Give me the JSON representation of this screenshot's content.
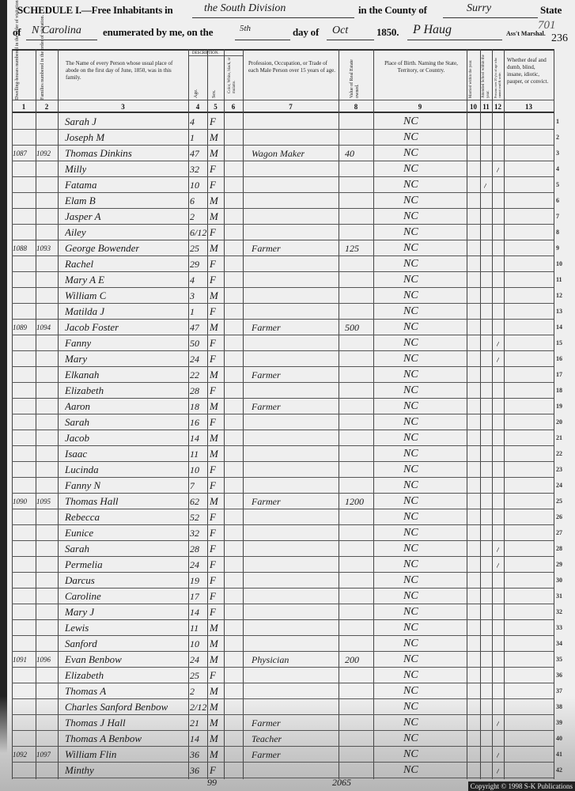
{
  "heading": {
    "schedule": "SCHEDULE I.—Free Inhabitants in",
    "division": "the South Division",
    "county_label": "in the County of",
    "county": "Surry",
    "state_label": "State",
    "of_label": "of",
    "state": "N Carolina",
    "enumerated_label": "enumerated by me, on the",
    "day": "5th",
    "day_of_label": "day of",
    "month": "Oct",
    "year": "1850.",
    "marshal": "P Haug",
    "marshal_label": "Ass't Marshal.",
    "page_stamp": "701",
    "page_number": "236"
  },
  "columns": {
    "c1": "Dwelling-houses numbered in the order of visitation.",
    "c2": "Families numbered in the order of visitation.",
    "c3": "The Name of every Person whose usual place of abode on the first day of June, 1850, was in this family.",
    "description": "DESCRIPTION.",
    "c4": "Age.",
    "c5": "Sex.",
    "c6": "Color, White, black, or mulatto.",
    "c7": "Profession, Occupation, or Trade of each Male Person over 15 years of age.",
    "c8": "Value of Real Estate owned.",
    "c9": "Place of Birth. Naming the State, Territory, or Country.",
    "c10": "Married within the year.",
    "c11": "Attended School within the year.",
    "c12": "Persons over 20 y'rs of age who cannot read & write.",
    "c13": "Whether deaf and dumb, blind, insane, idiotic, pauper, or convict.",
    "numbers": [
      "1",
      "2",
      "3",
      "4",
      "5",
      "6",
      "7",
      "8",
      "9",
      "10",
      "11",
      "12",
      "13"
    ]
  },
  "rows": [
    {
      "line": "1",
      "dw": "",
      "fam": "",
      "name": "Sarah J",
      "age": "4",
      "sex": "F",
      "occ": "",
      "val": "",
      "birth": "NC",
      "school": "",
      "illit": ""
    },
    {
      "line": "2",
      "dw": "",
      "fam": "",
      "name": "Joseph M",
      "age": "1",
      "sex": "M",
      "occ": "",
      "val": "",
      "birth": "NC",
      "school": "",
      "illit": ""
    },
    {
      "line": "3",
      "dw": "1087",
      "fam": "1092",
      "name": "Thomas Dinkins",
      "age": "47",
      "sex": "M",
      "occ": "Wagon Maker",
      "val": "40",
      "birth": "NC",
      "school": "",
      "illit": ""
    },
    {
      "line": "4",
      "dw": "",
      "fam": "",
      "name": "Milly",
      "age": "32",
      "sex": "F",
      "occ": "",
      "val": "",
      "birth": "NC",
      "school": "",
      "illit": "/"
    },
    {
      "line": "5",
      "dw": "",
      "fam": "",
      "name": "Fatama",
      "age": "10",
      "sex": "F",
      "occ": "",
      "val": "",
      "birth": "NC",
      "school": "/",
      "illit": ""
    },
    {
      "line": "6",
      "dw": "",
      "fam": "",
      "name": "Elam B",
      "age": "6",
      "sex": "M",
      "occ": "",
      "val": "",
      "birth": "NC",
      "school": "",
      "illit": ""
    },
    {
      "line": "7",
      "dw": "",
      "fam": "",
      "name": "Jasper A",
      "age": "2",
      "sex": "M",
      "occ": "",
      "val": "",
      "birth": "NC",
      "school": "",
      "illit": ""
    },
    {
      "line": "8",
      "dw": "",
      "fam": "",
      "name": "Ailey",
      "age": "6/12",
      "sex": "F",
      "occ": "",
      "val": "",
      "birth": "NC",
      "school": "",
      "illit": ""
    },
    {
      "line": "9",
      "dw": "1088",
      "fam": "1093",
      "name": "George Bowender",
      "age": "25",
      "sex": "M",
      "occ": "Farmer",
      "val": "125",
      "birth": "NC",
      "school": "",
      "illit": ""
    },
    {
      "line": "10",
      "dw": "",
      "fam": "",
      "name": "Rachel",
      "age": "29",
      "sex": "F",
      "occ": "",
      "val": "",
      "birth": "NC",
      "school": "",
      "illit": ""
    },
    {
      "line": "11",
      "dw": "",
      "fam": "",
      "name": "Mary A E",
      "age": "4",
      "sex": "F",
      "occ": "",
      "val": "",
      "birth": "NC",
      "school": "",
      "illit": ""
    },
    {
      "line": "12",
      "dw": "",
      "fam": "",
      "name": "William C",
      "age": "3",
      "sex": "M",
      "occ": "",
      "val": "",
      "birth": "NC",
      "school": "",
      "illit": ""
    },
    {
      "line": "13",
      "dw": "",
      "fam": "",
      "name": "Matilda J",
      "age": "1",
      "sex": "F",
      "occ": "",
      "val": "",
      "birth": "NC",
      "school": "",
      "illit": ""
    },
    {
      "line": "14",
      "dw": "1089",
      "fam": "1094",
      "name": "Jacob Foster",
      "age": "47",
      "sex": "M",
      "occ": "Farmer",
      "val": "500",
      "birth": "NC",
      "school": "",
      "illit": ""
    },
    {
      "line": "15",
      "dw": "",
      "fam": "",
      "name": "Fanny",
      "age": "50",
      "sex": "F",
      "occ": "",
      "val": "",
      "birth": "NC",
      "school": "",
      "illit": "/"
    },
    {
      "line": "16",
      "dw": "",
      "fam": "",
      "name": "Mary",
      "age": "24",
      "sex": "F",
      "occ": "",
      "val": "",
      "birth": "NC",
      "school": "",
      "illit": "/"
    },
    {
      "line": "17",
      "dw": "",
      "fam": "",
      "name": "Elkanah",
      "age": "22",
      "sex": "M",
      "occ": "Farmer",
      "val": "",
      "birth": "NC",
      "school": "",
      "illit": ""
    },
    {
      "line": "18",
      "dw": "",
      "fam": "",
      "name": "Elizabeth",
      "age": "28",
      "sex": "F",
      "occ": "",
      "val": "",
      "birth": "NC",
      "school": "",
      "illit": ""
    },
    {
      "line": "19",
      "dw": "",
      "fam": "",
      "name": "Aaron",
      "age": "18",
      "sex": "M",
      "occ": "Farmer",
      "val": "",
      "birth": "NC",
      "school": "",
      "illit": ""
    },
    {
      "line": "20",
      "dw": "",
      "fam": "",
      "name": "Sarah",
      "age": "16",
      "sex": "F",
      "occ": "",
      "val": "",
      "birth": "NC",
      "school": "",
      "illit": ""
    },
    {
      "line": "21",
      "dw": "",
      "fam": "",
      "name": "Jacob",
      "age": "14",
      "sex": "M",
      "occ": "",
      "val": "",
      "birth": "NC",
      "school": "",
      "illit": ""
    },
    {
      "line": "22",
      "dw": "",
      "fam": "",
      "name": "Isaac",
      "age": "11",
      "sex": "M",
      "occ": "",
      "val": "",
      "birth": "NC",
      "school": "",
      "illit": ""
    },
    {
      "line": "23",
      "dw": "",
      "fam": "",
      "name": "Lucinda",
      "age": "10",
      "sex": "F",
      "occ": "",
      "val": "",
      "birth": "NC",
      "school": "",
      "illit": ""
    },
    {
      "line": "24",
      "dw": "",
      "fam": "",
      "name": "Fanny N",
      "age": "7",
      "sex": "F",
      "occ": "",
      "val": "",
      "birth": "NC",
      "school": "",
      "illit": ""
    },
    {
      "line": "25",
      "dw": "1090",
      "fam": "1095",
      "name": "Thomas Hall",
      "age": "62",
      "sex": "M",
      "occ": "Farmer",
      "val": "1200",
      "birth": "NC",
      "school": "",
      "illit": ""
    },
    {
      "line": "26",
      "dw": "",
      "fam": "",
      "name": "Rebecca",
      "age": "52",
      "sex": "F",
      "occ": "",
      "val": "",
      "birth": "NC",
      "school": "",
      "illit": ""
    },
    {
      "line": "27",
      "dw": "",
      "fam": "",
      "name": "Eunice",
      "age": "32",
      "sex": "F",
      "occ": "",
      "val": "",
      "birth": "NC",
      "school": "",
      "illit": ""
    },
    {
      "line": "28",
      "dw": "",
      "fam": "",
      "name": "Sarah",
      "age": "28",
      "sex": "F",
      "occ": "",
      "val": "",
      "birth": "NC",
      "school": "",
      "illit": "/"
    },
    {
      "line": "29",
      "dw": "",
      "fam": "",
      "name": "Permelia",
      "age": "24",
      "sex": "F",
      "occ": "",
      "val": "",
      "birth": "NC",
      "school": "",
      "illit": "/"
    },
    {
      "line": "30",
      "dw": "",
      "fam": "",
      "name": "Darcus",
      "age": "19",
      "sex": "F",
      "occ": "",
      "val": "",
      "birth": "NC",
      "school": "",
      "illit": ""
    },
    {
      "line": "31",
      "dw": "",
      "fam": "",
      "name": "Caroline",
      "age": "17",
      "sex": "F",
      "occ": "",
      "val": "",
      "birth": "NC",
      "school": "",
      "illit": ""
    },
    {
      "line": "32",
      "dw": "",
      "fam": "",
      "name": "Mary J",
      "age": "14",
      "sex": "F",
      "occ": "",
      "val": "",
      "birth": "NC",
      "school": "",
      "illit": ""
    },
    {
      "line": "33",
      "dw": "",
      "fam": "",
      "name": "Lewis",
      "age": "11",
      "sex": "M",
      "occ": "",
      "val": "",
      "birth": "NC",
      "school": "",
      "illit": ""
    },
    {
      "line": "34",
      "dw": "",
      "fam": "",
      "name": "Sanford",
      "age": "10",
      "sex": "M",
      "occ": "",
      "val": "",
      "birth": "NC",
      "school": "",
      "illit": ""
    },
    {
      "line": "35",
      "dw": "1091",
      "fam": "1096",
      "name": "Evan Benbow",
      "age": "24",
      "sex": "M",
      "occ": "Physician",
      "val": "200",
      "birth": "NC",
      "school": "",
      "illit": ""
    },
    {
      "line": "36",
      "dw": "",
      "fam": "",
      "name": "Elizabeth",
      "age": "25",
      "sex": "F",
      "occ": "",
      "val": "",
      "birth": "NC",
      "school": "",
      "illit": ""
    },
    {
      "line": "37",
      "dw": "",
      "fam": "",
      "name": "Thomas A",
      "age": "2",
      "sex": "M",
      "occ": "",
      "val": "",
      "birth": "NC",
      "school": "",
      "illit": ""
    },
    {
      "line": "38",
      "dw": "",
      "fam": "",
      "name": "Charles Sanford Benbow",
      "age": "2/12",
      "sex": "M",
      "occ": "",
      "val": "",
      "birth": "NC",
      "school": "",
      "illit": ""
    },
    {
      "line": "39",
      "dw": "",
      "fam": "",
      "name": "Thomas J Hall",
      "age": "21",
      "sex": "M",
      "occ": "Farmer",
      "val": "",
      "birth": "NC",
      "school": "",
      "illit": "/"
    },
    {
      "line": "40",
      "dw": "",
      "fam": "",
      "name": "Thomas A Benbow",
      "age": "14",
      "sex": "M",
      "occ": "Teacher",
      "val": "",
      "birth": "NC",
      "school": "",
      "illit": ""
    },
    {
      "line": "41",
      "dw": "1092",
      "fam": "1097",
      "name": "William Flin",
      "age": "36",
      "sex": "M",
      "occ": "Farmer",
      "val": "",
      "birth": "NC",
      "school": "",
      "illit": "/"
    },
    {
      "line": "42",
      "dw": "",
      "fam": "",
      "name": "Minthy",
      "age": "36",
      "sex": "F",
      "occ": "",
      "val": "",
      "birth": "NC",
      "school": "",
      "illit": "/"
    }
  ],
  "footer": {
    "tally_left": "99",
    "tally_right": "2065",
    "copyright": "Copyright © 1998 S-K Publications"
  }
}
